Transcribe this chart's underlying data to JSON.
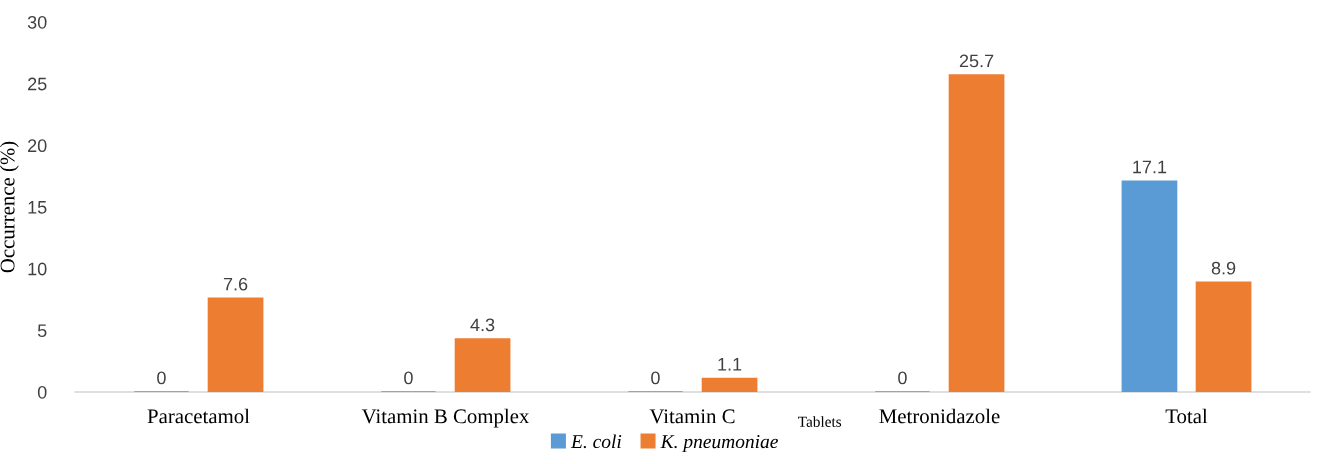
{
  "chart_data": {
    "type": "bar",
    "xlabel": "Tablets",
    "ylabel": "Occurrence (%)",
    "categories": [
      "Paracetamol",
      "Vitamin B Complex",
      "Vitamin C",
      "Metronidazole",
      "Total"
    ],
    "series": [
      {
        "name": "E. coli",
        "color": "#5b9bd5",
        "values": [
          0,
          0,
          0,
          0,
          17.1
        ]
      },
      {
        "name": "K. pneumoniae",
        "color": "#ed7d31",
        "values": [
          7.6,
          4.3,
          1.1,
          25.7,
          8.9
        ]
      }
    ],
    "ylim": [
      0,
      30
    ],
    "yticks": [
      0,
      5,
      10,
      15,
      20,
      25,
      30
    ],
    "data_labels": true,
    "legend": "bottom",
    "grid": false
  }
}
